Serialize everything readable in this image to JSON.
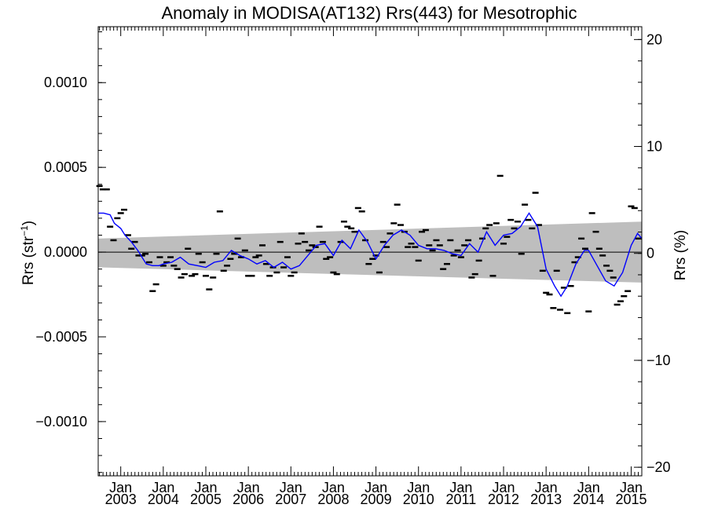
{
  "chart_data": {
    "type": "scatter",
    "title": "Anomaly in MODISA(AT132) Rrs(443) for Mesotrophic",
    "ylabel": "Rrs (str",
    "ylabel_sup": "−1",
    "ylabel_suffix": ")",
    "y2label": "Rrs (%)",
    "ylim": [
      -0.00132,
      0.00133
    ],
    "y2lim": [
      -20.8,
      21.2
    ],
    "xlim": [
      2002.47,
      2015.25
    ],
    "yticks": [
      {
        "value": 0.001,
        "label": "0.0010"
      },
      {
        "value": 0.0005,
        "label": "0.0005"
      },
      {
        "value": 0.0,
        "label": "0.0000"
      },
      {
        "value": -0.0005,
        "label": "−0.0005"
      },
      {
        "value": -0.001,
        "label": "−0.0010"
      }
    ],
    "y2ticks": [
      {
        "value": 20,
        "label": "20"
      },
      {
        "value": 10,
        "label": "10"
      },
      {
        "value": 0,
        "label": "0"
      },
      {
        "value": -10,
        "label": "−10"
      },
      {
        "value": -20,
        "label": "−20"
      }
    ],
    "xticks": [
      {
        "value": 2003.0,
        "month": "Jan",
        "year": "2003"
      },
      {
        "value": 2004.0,
        "month": "Jan",
        "year": "2004"
      },
      {
        "value": 2005.0,
        "month": "Jan",
        "year": "2005"
      },
      {
        "value": 2006.0,
        "month": "Jan",
        "year": "2006"
      },
      {
        "value": 2007.0,
        "month": "Jan",
        "year": "2007"
      },
      {
        "value": 2008.0,
        "month": "Jan",
        "year": "2008"
      },
      {
        "value": 2009.0,
        "month": "Jan",
        "year": "2009"
      },
      {
        "value": 2010.0,
        "month": "Jan",
        "year": "2010"
      },
      {
        "value": 2011.0,
        "month": "Jan",
        "year": "2011"
      },
      {
        "value": 2012.0,
        "month": "Jan",
        "year": "2012"
      },
      {
        "value": 2013.0,
        "month": "Jan",
        "year": "2013"
      },
      {
        "value": 2014.0,
        "month": "Jan",
        "year": "2014"
      },
      {
        "value": 2015.0,
        "month": "Jan",
        "year": "2015"
      }
    ],
    "grid": false,
    "colors": {
      "smooth_line": "#0000ff",
      "points": "#000000",
      "band": "#bebebe",
      "zero_line": "#000000"
    },
    "band": {
      "x": [
        2002.47,
        2015.25
      ],
      "upper": [
        8e-05,
        0.00018
      ],
      "lower": [
        -9e-05,
        -0.00018
      ]
    },
    "series": [
      {
        "kind": "points",
        "x": [
          2002.5,
          2002.58,
          2002.67,
          2002.75,
          2002.83,
          2002.92,
          2003.0,
          2003.08,
          2003.17,
          2003.25,
          2003.33,
          2003.42,
          2003.5,
          2003.58,
          2003.67,
          2003.75,
          2003.83,
          2003.92,
          2004.0,
          2004.08,
          2004.17,
          2004.25,
          2004.33,
          2004.42,
          2004.5,
          2004.58,
          2004.67,
          2004.75,
          2004.83,
          2004.92,
          2005.0,
          2005.08,
          2005.17,
          2005.25,
          2005.33,
          2005.42,
          2005.5,
          2005.58,
          2005.67,
          2005.75,
          2005.83,
          2005.92,
          2006.0,
          2006.08,
          2006.17,
          2006.25,
          2006.33,
          2006.42,
          2006.5,
          2006.58,
          2006.67,
          2006.75,
          2006.83,
          2006.92,
          2007.0,
          2007.08,
          2007.17,
          2007.25,
          2007.33,
          2007.42,
          2007.5,
          2007.58,
          2007.67,
          2007.75,
          2007.83,
          2007.92,
          2008.0,
          2008.08,
          2008.17,
          2008.25,
          2008.33,
          2008.42,
          2008.5,
          2008.58,
          2008.67,
          2008.75,
          2008.83,
          2008.92,
          2009.0,
          2009.08,
          2009.17,
          2009.25,
          2009.33,
          2009.42,
          2009.5,
          2009.58,
          2009.67,
          2009.75,
          2009.83,
          2009.92,
          2010.0,
          2010.08,
          2010.17,
          2010.25,
          2010.33,
          2010.42,
          2010.5,
          2010.58,
          2010.67,
          2010.75,
          2010.83,
          2010.92,
          2011.0,
          2011.08,
          2011.17,
          2011.25,
          2011.33,
          2011.42,
          2011.5,
          2011.58,
          2011.67,
          2011.75,
          2011.83,
          2011.92,
          2012.0,
          2012.08,
          2012.17,
          2012.25,
          2012.33,
          2012.42,
          2012.5,
          2012.58,
          2012.67,
          2012.75,
          2012.83,
          2012.92,
          2013.0,
          2013.08,
          2013.17,
          2013.25,
          2013.33,
          2013.42,
          2013.5,
          2013.58,
          2013.67,
          2013.75,
          2013.83,
          2013.92,
          2014.0,
          2014.08,
          2014.17,
          2014.25,
          2014.33,
          2014.42,
          2014.5,
          2014.58,
          2014.67,
          2014.75,
          2014.83,
          2014.92,
          2015.0,
          2015.08,
          2015.17
        ],
        "y": [
          0.00039,
          0.00037,
          0.00037,
          0.00015,
          7e-05,
          0.0002,
          0.00023,
          0.00025,
          0.0001,
          2e-05,
          6e-05,
          -2e-05,
          -2e-05,
          -1e-05,
          -6e-05,
          -0.00023,
          -0.00019,
          -3e-05,
          -8e-05,
          -6e-05,
          -3e-05,
          -8e-05,
          -0.0001,
          -0.00015,
          -0.00013,
          2e-05,
          -0.00014,
          -0.00013,
          -1e-05,
          -6e-05,
          -0.00014,
          -0.00022,
          -0.00015,
          -1e-05,
          0.00024,
          -0.00011,
          -8e-05,
          -4e-05,
          -1e-05,
          8e-05,
          -3e-05,
          1e-05,
          -0.00014,
          -0.00014,
          -3e-05,
          -2e-05,
          4e-05,
          -7e-05,
          -0.00014,
          -9e-05,
          -0.00012,
          6e-05,
          -9e-05,
          -3e-05,
          -0.00014,
          -0.00012,
          5e-05,
          0.00011,
          6e-05,
          1e-05,
          4e-05,
          3e-05,
          0.00015,
          6e-05,
          -4e-05,
          -3e-05,
          -0.00012,
          -0.00013,
          6e-05,
          0.00018,
          0.00015,
          0.00014,
          0.00012,
          0.00026,
          0.00024,
          7e-05,
          -7e-05,
          -4e-05,
          -2e-05,
          -0.00012,
          6e-05,
          3e-05,
          0.00011,
          0.00017,
          0.00028,
          0.00016,
          0.00012,
          3e-05,
          5e-05,
          3e-05,
          -5e-05,
          0.00012,
          0.00013,
          4e-05,
          1e-05,
          7e-05,
          4e-05,
          -0.0001,
          -7e-05,
          7e-05,
          -2e-05,
          1e-05,
          -3e-05,
          4e-05,
          7e-05,
          -0.00015,
          -0.00013,
          -5e-05,
          8e-05,
          0.00014,
          0.00016,
          -0.00014,
          0.00017,
          0.00045,
          5e-05,
          9e-05,
          0.00019,
          0.00014,
          0.00018,
          -1e-05,
          0.00028,
          0.00019,
          0.00014,
          0.00035,
          0.00016,
          -0.00011,
          -0.00024,
          -0.00025,
          -0.00033,
          -0.00011,
          -0.00034,
          -0.00021,
          -0.00036,
          -0.0002,
          -6e-05,
          -3e-05,
          8e-05,
          2e-05,
          -0.00035,
          0.00023,
          0.00012,
          2e-05,
          -2e-05,
          -8e-05,
          -0.00011,
          -0.00015,
          -0.00031,
          -0.00029,
          -0.00026,
          -0.00023,
          0.00027,
          0.00026,
          8e-05
        ]
      },
      {
        "kind": "line",
        "x": [
          2002.47,
          2002.6,
          2002.75,
          2002.85,
          2003.0,
          2003.1,
          2003.25,
          2003.4,
          2003.5,
          2003.6,
          2003.75,
          2003.9,
          2004.0,
          2004.2,
          2004.4,
          2004.6,
          2004.8,
          2005.0,
          2005.2,
          2005.4,
          2005.6,
          2005.8,
          2006.0,
          2006.2,
          2006.4,
          2006.6,
          2006.8,
          2007.0,
          2007.2,
          2007.4,
          2007.6,
          2007.8,
          2008.0,
          2008.2,
          2008.4,
          2008.6,
          2008.8,
          2009.0,
          2009.2,
          2009.4,
          2009.6,
          2009.8,
          2010.0,
          2010.2,
          2010.4,
          2010.6,
          2010.8,
          2011.0,
          2011.2,
          2011.4,
          2011.6,
          2011.8,
          2012.0,
          2012.2,
          2012.4,
          2012.6,
          2012.8,
          2013.0,
          2013.2,
          2013.35,
          2013.5,
          2013.7,
          2013.9,
          2014.0,
          2014.2,
          2014.4,
          2014.6,
          2014.8,
          2015.0,
          2015.15,
          2015.25
        ],
        "y": [
          0.00023,
          0.00023,
          0.00022,
          0.00017,
          0.00014,
          0.0001,
          6e-05,
          1e-05,
          -3e-05,
          -7e-05,
          -8e-05,
          -8e-05,
          -7e-05,
          -6e-05,
          -3e-05,
          -7e-05,
          -8e-05,
          -9e-05,
          -6e-05,
          -5e-05,
          1e-05,
          -2e-05,
          -4e-05,
          -7e-05,
          -5e-05,
          -9e-05,
          -6e-05,
          -0.0001,
          -8e-05,
          -2e-05,
          4e-05,
          5e-05,
          -2e-05,
          7e-05,
          2e-05,
          0.00013,
          6e-05,
          -4e-05,
          4e-05,
          0.0001,
          0.00013,
          0.0001,
          4e-05,
          2e-05,
          2e-05,
          1e-05,
          -1e-05,
          -2e-05,
          5e-05,
          0.0,
          0.00012,
          4e-05,
          0.0001,
          0.00011,
          0.00015,
          0.00023,
          0.00015,
          -0.0001,
          -0.0002,
          -0.00026,
          -0.0002,
          -7e-05,
          1e-05,
          1e-05,
          -8e-05,
          -0.00017,
          -0.0002,
          -0.00012,
          4e-05,
          0.00011,
          8e-05
        ]
      }
    ]
  }
}
